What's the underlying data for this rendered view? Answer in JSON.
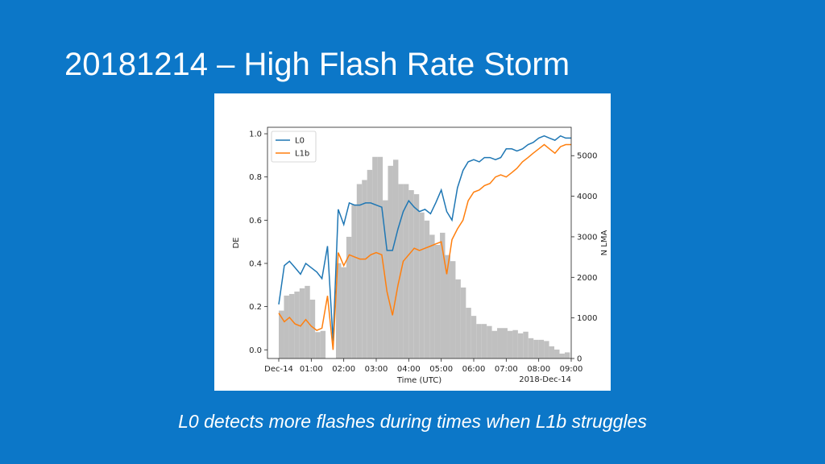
{
  "slide": {
    "title": "20181214 – High Flash Rate Storm",
    "caption": "L0 detects more flashes during times when L1b struggles"
  },
  "colors": {
    "background": "#0c77c8",
    "l0": "#1f77b4",
    "l1b": "#ff7f0e",
    "bars": "#c0c0c0"
  },
  "chart_data": {
    "type": "line",
    "title": "",
    "xlabel": "Time (UTC)",
    "ylabel": "DE",
    "y2label": "N LMA",
    "date_label": "2018-Dec-14",
    "xlim": [
      0,
      9
    ],
    "ylim": [
      -0.04,
      1.03
    ],
    "y2lim": [
      0,
      5700
    ],
    "x_ticks": [
      0,
      1,
      2,
      3,
      4,
      5,
      6,
      7,
      8,
      9
    ],
    "x_tick_labels": [
      "Dec-14",
      "01:00",
      "02:00",
      "03:00",
      "04:00",
      "05:00",
      "06:00",
      "07:00",
      "08:00",
      "09:00"
    ],
    "y_ticks": [
      0.0,
      0.2,
      0.4,
      0.6,
      0.8,
      1.0
    ],
    "y_tick_labels": [
      "0.0",
      "0.2",
      "0.4",
      "0.6",
      "0.8",
      "1.0"
    ],
    "y2_ticks": [
      0,
      1000,
      2000,
      3000,
      4000,
      5000
    ],
    "y2_tick_labels": [
      "0",
      "1000",
      "2000",
      "3000",
      "4000",
      "5000"
    ],
    "legend_position": "top-left",
    "series": [
      {
        "name": "L0",
        "x": [
          0.0,
          0.17,
          0.33,
          0.5,
          0.67,
          0.83,
          1.0,
          1.17,
          1.33,
          1.5,
          1.67,
          1.83,
          2.0,
          2.17,
          2.33,
          2.5,
          2.67,
          2.83,
          3.0,
          3.17,
          3.33,
          3.5,
          3.67,
          3.83,
          4.0,
          4.17,
          4.33,
          4.5,
          4.67,
          4.83,
          5.0,
          5.17,
          5.33,
          5.5,
          5.67,
          5.83,
          6.0,
          6.17,
          6.33,
          6.5,
          6.67,
          6.83,
          7.0,
          7.17,
          7.33,
          7.5,
          7.67,
          7.83,
          8.0,
          8.17,
          8.33,
          8.5,
          8.67,
          8.83,
          9.0
        ],
        "values": [
          0.21,
          0.39,
          0.41,
          0.38,
          0.35,
          0.4,
          0.38,
          0.36,
          0.33,
          0.48,
          0.04,
          0.65,
          0.58,
          0.68,
          0.67,
          0.67,
          0.68,
          0.68,
          0.67,
          0.66,
          0.46,
          0.46,
          0.56,
          0.64,
          0.69,
          0.66,
          0.64,
          0.65,
          0.63,
          0.68,
          0.74,
          0.64,
          0.6,
          0.75,
          0.83,
          0.87,
          0.88,
          0.87,
          0.89,
          0.89,
          0.88,
          0.89,
          0.93,
          0.93,
          0.92,
          0.93,
          0.95,
          0.96,
          0.98,
          0.99,
          0.98,
          0.97,
          0.99,
          0.98,
          0.98
        ],
        "color": "#1f77b4"
      },
      {
        "name": "L1b",
        "x": [
          0.0,
          0.17,
          0.33,
          0.5,
          0.67,
          0.83,
          1.0,
          1.17,
          1.33,
          1.5,
          1.67,
          1.83,
          2.0,
          2.17,
          2.33,
          2.5,
          2.67,
          2.83,
          3.0,
          3.17,
          3.33,
          3.5,
          3.67,
          3.83,
          4.0,
          4.17,
          4.33,
          4.5,
          4.67,
          4.83,
          5.0,
          5.17,
          5.33,
          5.5,
          5.67,
          5.83,
          6.0,
          6.17,
          6.33,
          6.5,
          6.67,
          6.83,
          7.0,
          7.17,
          7.33,
          7.5,
          7.67,
          7.83,
          8.0,
          8.17,
          8.33,
          8.5,
          8.67,
          8.83,
          9.0
        ],
        "values": [
          0.17,
          0.13,
          0.15,
          0.12,
          0.11,
          0.14,
          0.11,
          0.09,
          0.1,
          0.25,
          0.0,
          0.45,
          0.39,
          0.44,
          0.43,
          0.42,
          0.42,
          0.44,
          0.45,
          0.44,
          0.27,
          0.16,
          0.3,
          0.41,
          0.44,
          0.47,
          0.46,
          0.47,
          0.48,
          0.49,
          0.5,
          0.35,
          0.51,
          0.56,
          0.6,
          0.69,
          0.73,
          0.74,
          0.76,
          0.77,
          0.8,
          0.81,
          0.8,
          0.82,
          0.84,
          0.87,
          0.89,
          0.91,
          0.93,
          0.95,
          0.93,
          0.91,
          0.94,
          0.95,
          0.95
        ],
        "color": "#ff7f0e"
      }
    ],
    "histogram": {
      "name": "N LMA",
      "bin_width": 0.16,
      "bin_starts": [
        0.0,
        0.16,
        0.32,
        0.48,
        0.64,
        0.8,
        0.96,
        1.12,
        1.28,
        1.44,
        1.6,
        1.76,
        1.92,
        2.08,
        2.24,
        2.4,
        2.56,
        2.72,
        2.88,
        3.04,
        3.2,
        3.36,
        3.52,
        3.68,
        3.84,
        4.0,
        4.16,
        4.32,
        4.48,
        4.64,
        4.8,
        4.96,
        5.12,
        5.28,
        5.44,
        5.6,
        5.76,
        5.92,
        6.08,
        6.24,
        6.4,
        6.56,
        6.72,
        6.88,
        7.04,
        7.2,
        7.36,
        7.52,
        7.68,
        7.84,
        8.0,
        8.16,
        8.32,
        8.48,
        8.64,
        8.8
      ],
      "values": [
        1180,
        1550,
        1590,
        1650,
        1730,
        1790,
        1450,
        650,
        680,
        0,
        0,
        2350,
        2250,
        3000,
        3800,
        4300,
        4400,
        4650,
        4970,
        4970,
        3900,
        4750,
        4900,
        4300,
        4300,
        4150,
        4050,
        3600,
        3400,
        3050,
        2800,
        3100,
        2550,
        2400,
        1950,
        1750,
        1250,
        1050,
        850,
        850,
        800,
        680,
        750,
        750,
        680,
        700,
        620,
        660,
        500,
        460,
        460,
        430,
        300,
        220,
        120,
        150
      ]
    }
  }
}
